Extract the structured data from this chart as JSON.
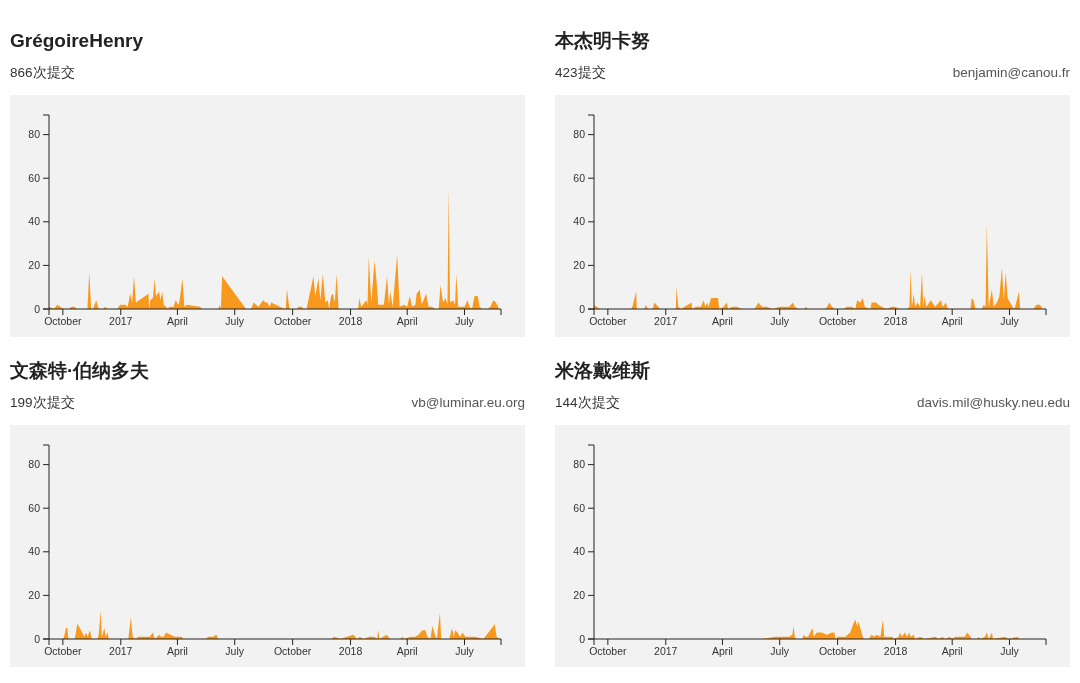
{
  "chart_data": [
    {
      "type": "area",
      "title": "GrégoireHenry",
      "subtitle": "866次提交",
      "color": "#f8991d",
      "xlim": [
        "2016-09-09",
        "2018-08-28"
      ],
      "ylim": [
        0,
        89
      ],
      "yticks": [
        0,
        20,
        40,
        60,
        80
      ],
      "xticks": [
        {
          "value": "2016-10-01",
          "label": "October"
        },
        {
          "value": "2017-01-01",
          "label": "2017"
        },
        {
          "value": "2017-04-01",
          "label": "April"
        },
        {
          "value": "2017-07-01",
          "label": "July"
        },
        {
          "value": "2017-10-01",
          "label": "October"
        },
        {
          "value": "2018-01-01",
          "label": "2018"
        },
        {
          "value": "2018-04-01",
          "label": "April"
        },
        {
          "value": "2018-07-01",
          "label": "July"
        }
      ],
      "x": [
        "2016-09-09",
        "2016-09-17",
        "2016-09-22",
        "2016-09-27",
        "2016-10-02",
        "2016-10-10",
        "2016-10-15",
        "2016-10-20",
        "2016-10-23",
        "2016-11-09",
        "2016-11-12",
        "2016-11-15",
        "2016-11-18",
        "2016-11-23",
        "2016-11-27",
        "2016-12-04",
        "2016-12-07",
        "2016-12-11",
        "2016-12-26",
        "2016-12-31",
        "2017-01-08",
        "2017-01-12",
        "2017-01-16",
        "2017-01-19",
        "2017-01-22",
        "2017-01-25",
        "2017-02-14",
        "2017-02-15",
        "2017-02-17",
        "2017-02-21",
        "2017-02-24",
        "2017-02-26",
        "2017-03-03",
        "2017-03-05",
        "2017-03-08",
        "2017-03-10",
        "2017-03-14",
        "2017-03-17",
        "2017-03-19",
        "2017-03-26",
        "2017-03-29",
        "2017-04-02",
        "2017-04-04",
        "2017-04-09",
        "2017-04-12",
        "2017-04-16",
        "2017-05-07",
        "2017-05-10",
        "2017-06-05",
        "2017-06-07",
        "2017-06-09",
        "2017-06-11",
        "2017-07-19",
        "2017-07-27",
        "2017-07-31",
        "2017-08-04",
        "2017-08-08",
        "2017-08-15",
        "2017-08-19",
        "2017-08-22",
        "2017-08-25",
        "2017-08-28",
        "2017-09-11",
        "2017-09-18",
        "2017-09-20",
        "2017-09-22",
        "2017-09-26",
        "2017-10-08",
        "2017-10-10",
        "2017-10-16",
        "2017-10-18",
        "2017-10-23",
        "2017-10-29",
        "2017-11-03",
        "2017-11-06",
        "2017-11-11",
        "2017-11-14",
        "2017-11-18",
        "2017-11-22",
        "2017-11-26",
        "2017-11-28",
        "2017-12-01",
        "2017-12-04",
        "2017-12-07",
        "2017-12-10",
        "2017-12-13",
        "2018-01-13",
        "2018-01-15",
        "2018-01-18",
        "2018-01-26",
        "2018-01-28",
        "2018-01-30",
        "2018-02-03",
        "2018-02-08",
        "2018-02-11",
        "2018-02-14",
        "2018-02-23",
        "2018-02-28",
        "2018-03-03",
        "2018-03-05",
        "2018-03-09",
        "2018-03-16",
        "2018-03-20",
        "2018-03-27",
        "2018-04-01",
        "2018-04-05",
        "2018-04-09",
        "2018-04-14",
        "2018-04-16",
        "2018-04-21",
        "2018-04-24",
        "2018-05-01",
        "2018-05-05",
        "2018-05-10",
        "2018-05-16",
        "2018-05-21",
        "2018-05-24",
        "2018-05-28",
        "2018-06-01",
        "2018-06-04",
        "2018-06-06",
        "2018-06-08",
        "2018-06-13",
        "2018-06-16",
        "2018-06-18",
        "2018-06-21",
        "2018-07-01",
        "2018-07-06",
        "2018-07-09",
        "2018-07-13",
        "2018-07-17",
        "2018-07-22",
        "2018-07-25",
        "2018-07-29",
        "2018-08-06",
        "2018-08-11",
        "2018-08-16",
        "2018-08-20",
        "2018-08-25"
      ],
      "values": [
        1,
        0,
        2,
        1,
        0,
        0,
        1,
        1,
        0,
        0,
        17,
        0,
        0,
        4,
        0,
        0,
        1,
        0,
        0,
        2,
        2,
        1,
        7,
        3,
        15,
        3,
        7,
        0,
        4,
        5,
        14,
        6,
        8,
        4,
        8,
        2,
        1,
        0,
        1,
        1,
        4,
        2,
        3,
        14,
        1,
        2,
        1,
        0,
        0,
        2,
        0,
        15,
        0,
        0,
        3,
        2,
        1,
        4,
        3,
        3,
        1,
        3,
        1,
        0,
        0,
        9,
        0,
        0,
        1,
        1,
        0,
        0,
        8,
        15,
        6,
        14,
        4,
        16,
        3,
        4,
        0,
        6,
        7,
        3,
        16,
        0,
        0,
        5,
        1,
        4,
        2,
        24,
        3,
        22,
        14,
        2,
        2,
        15,
        2,
        8,
        1,
        25,
        1,
        2,
        1,
        6,
        1,
        2,
        7,
        9,
        2,
        7,
        1,
        1,
        0,
        0,
        11,
        3,
        5,
        2,
        55,
        3,
        4,
        2,
        16,
        1,
        1,
        4,
        1,
        0,
        6,
        6,
        1,
        0,
        0,
        1,
        4,
        3,
        0
      ]
    },
    {
      "type": "area",
      "title": "本杰明卡努",
      "subtitle": "423提交",
      "annotations": [
        "benjamin@canou.fr"
      ],
      "color": "#f8991d",
      "xlim": [
        "2016-09-09",
        "2018-08-28"
      ],
      "ylim": [
        0,
        89
      ],
      "yticks": [
        0,
        20,
        40,
        60,
        80
      ],
      "xticks": [
        {
          "value": "2016-10-01",
          "label": "October"
        },
        {
          "value": "2017-01-01",
          "label": "2017"
        },
        {
          "value": "2017-04-01",
          "label": "April"
        },
        {
          "value": "2017-07-01",
          "label": "July"
        },
        {
          "value": "2017-10-01",
          "label": "October"
        },
        {
          "value": "2018-01-01",
          "label": "2018"
        },
        {
          "value": "2018-04-01",
          "label": "April"
        },
        {
          "value": "2018-07-01",
          "label": "July"
        }
      ],
      "x": [
        "2016-09-09",
        "2016-09-13",
        "2016-09-19",
        "2016-11-07",
        "2016-11-09",
        "2016-11-15",
        "2016-11-16",
        "2016-11-28",
        "2016-11-30",
        "2016-12-04",
        "2016-12-11",
        "2016-12-14",
        "2016-12-20",
        "2016-12-23",
        "2017-01-17",
        "2017-01-18",
        "2017-01-21",
        "2017-01-25",
        "2017-02-11",
        "2017-02-12",
        "2017-02-18",
        "2017-02-26",
        "2017-03-02",
        "2017-03-05",
        "2017-03-08",
        "2017-03-10",
        "2017-03-14",
        "2017-03-25",
        "2017-03-27",
        "2017-04-03",
        "2017-04-08",
        "2017-04-10",
        "2017-04-16",
        "2017-04-24",
        "2017-05-02",
        "2017-05-22",
        "2017-05-28",
        "2017-06-03",
        "2017-06-11",
        "2017-06-19",
        "2017-07-01",
        "2017-07-16",
        "2017-07-22",
        "2017-07-25",
        "2017-07-31",
        "2017-08-09",
        "2017-08-11",
        "2017-08-15",
        "2017-09-12",
        "2017-09-18",
        "2017-09-22",
        "2017-09-27",
        "2017-10-10",
        "2017-10-16",
        "2017-10-24",
        "2017-10-29",
        "2017-11-01",
        "2017-11-06",
        "2017-11-10",
        "2017-11-13",
        "2017-11-22",
        "2017-11-24",
        "2017-12-01",
        "2017-12-05",
        "2017-12-10",
        "2017-12-18",
        "2017-12-26",
        "2017-12-31",
        "2018-01-08",
        "2018-01-19",
        "2018-01-23",
        "2018-01-25",
        "2018-01-27",
        "2018-01-30",
        "2018-02-01",
        "2018-02-05",
        "2018-02-09",
        "2018-02-12",
        "2018-02-14",
        "2018-02-16",
        "2018-02-19",
        "2018-02-26",
        "2018-03-05",
        "2018-03-14",
        "2018-03-17",
        "2018-03-22",
        "2018-03-25",
        "2018-04-30",
        "2018-05-02",
        "2018-05-05",
        "2018-05-08",
        "2018-05-18",
        "2018-05-21",
        "2018-05-24",
        "2018-05-26",
        "2018-05-29",
        "2018-06-03",
        "2018-06-06",
        "2018-06-11",
        "2018-06-15",
        "2018-06-19",
        "2018-06-22",
        "2018-06-25",
        "2018-06-28",
        "2018-07-02",
        "2018-07-06",
        "2018-07-09",
        "2018-07-16",
        "2018-07-18",
        "2018-08-08",
        "2018-08-13",
        "2018-08-18",
        "2018-08-21"
      ],
      "values": [
        2,
        1,
        0,
        0,
        1,
        8,
        0,
        0,
        2,
        0,
        0,
        3,
        1,
        0,
        0,
        10,
        1,
        0,
        3,
        0,
        1,
        1,
        4,
        1,
        3,
        1,
        5,
        5,
        0,
        1,
        3,
        0,
        1,
        1,
        0,
        0,
        3,
        1,
        1,
        0,
        1,
        1,
        3,
        1,
        0,
        0,
        1,
        0,
        0,
        3,
        1,
        0,
        0,
        1,
        1,
        0,
        4,
        3,
        5,
        1,
        0,
        3,
        3,
        2,
        1,
        0,
        1,
        1,
        0,
        0,
        1,
        18,
        1,
        7,
        1,
        3,
        1,
        17,
        1,
        6,
        1,
        4,
        1,
        4,
        1,
        3,
        0,
        0,
        5,
        4,
        0,
        0,
        2,
        1,
        39,
        1,
        9,
        1,
        3,
        6,
        19,
        4,
        17,
        5,
        3,
        1,
        0,
        8,
        0,
        0,
        2,
        2,
        1
      ]
    },
    {
      "type": "area",
      "title": "文森特·伯纳多夫",
      "subtitle": "199次提交",
      "annotations": [
        "vb@luminar.eu.org"
      ],
      "color": "#f8991d",
      "xlim": [
        "2016-09-09",
        "2018-08-28"
      ],
      "ylim": [
        0,
        89
      ],
      "yticks": [
        0,
        20,
        40,
        60,
        80
      ],
      "xticks": [
        {
          "value": "2016-10-01",
          "label": "October"
        },
        {
          "value": "2017-01-01",
          "label": "2017"
        },
        {
          "value": "2017-04-01",
          "label": "April"
        },
        {
          "value": "2017-07-01",
          "label": "July"
        },
        {
          "value": "2017-10-01",
          "label": "October"
        },
        {
          "value": "2018-01-01",
          "label": "2018"
        },
        {
          "value": "2018-04-01",
          "label": "April"
        },
        {
          "value": "2018-07-01",
          "label": "July"
        }
      ],
      "x": [
        "2016-10-02",
        "2016-10-06",
        "2016-10-08",
        "2016-10-10",
        "2016-10-20",
        "2016-10-24",
        "2016-10-30",
        "2016-11-04",
        "2016-11-07",
        "2016-11-09",
        "2016-11-13",
        "2016-11-16",
        "2016-11-25",
        "2016-11-27",
        "2016-11-30",
        "2016-12-02",
        "2016-12-06",
        "2016-12-08",
        "2016-12-11",
        "2016-12-13",
        "2017-01-13",
        "2017-01-17",
        "2017-01-20",
        "2017-01-24",
        "2017-01-29",
        "2017-02-16",
        "2017-02-21",
        "2017-02-24",
        "2017-03-03",
        "2017-03-06",
        "2017-03-10",
        "2017-03-14",
        "2017-03-21",
        "2017-03-28",
        "2017-04-03",
        "2017-04-08",
        "2017-04-10",
        "2017-05-15",
        "2017-05-20",
        "2017-05-27",
        "2017-06-02",
        "2017-06-05",
        "2017-12-02",
        "2017-12-06",
        "2017-12-16",
        "2017-12-26",
        "2018-01-06",
        "2018-01-11",
        "2018-01-16",
        "2018-01-21",
        "2018-01-31",
        "2018-02-08",
        "2018-02-12",
        "2018-02-14",
        "2018-02-16",
        "2018-02-27",
        "2018-03-05",
        "2018-03-21",
        "2018-03-24",
        "2018-03-27",
        "2018-04-06",
        "2018-04-14",
        "2018-04-19",
        "2018-04-25",
        "2018-04-30",
        "2018-05-03",
        "2018-05-08",
        "2018-05-11",
        "2018-05-15",
        "2018-05-18",
        "2018-05-23",
        "2018-05-25",
        "2018-06-07",
        "2018-06-11",
        "2018-06-14",
        "2018-06-16",
        "2018-06-20",
        "2018-06-24",
        "2018-06-28",
        "2018-07-02",
        "2018-07-08",
        "2018-07-13",
        "2018-07-18",
        "2018-07-31",
        "2018-08-16",
        "2018-08-18",
        "2018-08-21",
        "2018-08-26"
      ],
      "values": [
        0,
        5,
        5,
        0,
        0,
        7,
        4,
        1,
        3,
        1,
        4,
        0,
        0,
        2,
        13,
        1,
        5,
        1,
        3,
        0,
        0,
        10,
        1,
        0,
        1,
        1,
        3,
        0,
        2,
        1,
        1,
        3,
        2,
        1,
        1,
        1,
        0,
        0,
        1,
        1,
        2,
        0,
        0,
        1,
        0,
        1,
        2,
        0,
        1,
        0,
        1,
        1,
        0,
        4,
        0,
        2,
        0,
        0,
        1,
        0,
        1,
        1,
        2,
        4,
        4,
        1,
        0,
        6,
        2,
        0,
        12,
        0,
        0,
        5,
        1,
        4,
        3,
        1,
        3,
        1,
        1,
        1,
        1,
        0,
        6,
        7,
        1,
        0
      ]
    },
    {
      "type": "area",
      "title": "米洛戴维斯",
      "subtitle": "144次提交",
      "annotations": [
        "davis.mil@husky.neu.edu"
      ],
      "color": "#f8991d",
      "xlim": [
        "2016-09-09",
        "2018-08-28"
      ],
      "ylim": [
        0,
        89
      ],
      "yticks": [
        0,
        20,
        40,
        60,
        80
      ],
      "xticks": [
        {
          "value": "2016-10-01",
          "label": "October"
        },
        {
          "value": "2017-01-01",
          "label": "2017"
        },
        {
          "value": "2017-04-01",
          "label": "April"
        },
        {
          "value": "2017-07-01",
          "label": "July"
        },
        {
          "value": "2017-10-01",
          "label": "October"
        },
        {
          "value": "2018-01-01",
          "label": "2018"
        },
        {
          "value": "2018-04-01",
          "label": "April"
        },
        {
          "value": "2018-07-01",
          "label": "July"
        }
      ],
      "x": [
        "2017-06-02",
        "2017-06-24",
        "2017-07-16",
        "2017-07-21",
        "2017-07-23",
        "2017-07-25",
        "2017-07-27",
        "2017-08-06",
        "2017-08-08",
        "2017-08-11",
        "2017-08-15",
        "2017-08-22",
        "2017-08-24",
        "2017-08-29",
        "2017-09-06",
        "2017-09-14",
        "2017-09-22",
        "2017-09-26",
        "2017-09-28",
        "2017-10-01",
        "2017-10-13",
        "2017-10-21",
        "2017-10-26",
        "2017-10-29",
        "2017-11-01",
        "2017-11-03",
        "2017-11-08",
        "2017-11-10",
        "2017-11-12",
        "2017-11-19",
        "2017-11-24",
        "2017-11-28",
        "2017-12-02",
        "2017-12-08",
        "2017-12-12",
        "2017-12-14",
        "2017-12-18",
        "2017-12-26",
        "2017-12-31",
        "2018-01-06",
        "2018-01-08",
        "2018-01-11",
        "2018-01-16",
        "2018-01-19",
        "2018-01-23",
        "2018-01-25",
        "2018-01-30",
        "2018-02-01",
        "2018-02-09",
        "2018-02-16",
        "2018-03-05",
        "2018-03-11",
        "2018-03-16",
        "2018-03-21",
        "2018-03-28",
        "2018-04-01",
        "2018-04-06",
        "2018-04-14",
        "2018-04-21",
        "2018-04-25",
        "2018-04-30",
        "2018-05-02",
        "2018-05-10",
        "2018-05-13",
        "2018-05-15",
        "2018-05-23",
        "2018-05-26",
        "2018-05-29",
        "2018-06-03",
        "2018-06-05",
        "2018-06-24",
        "2018-06-30",
        "2018-07-13",
        "2018-07-17"
      ],
      "values": [
        0,
        1,
        1,
        2,
        6,
        1,
        0,
        0,
        2,
        1,
        1,
        5,
        1,
        3,
        3,
        2,
        3,
        3,
        0,
        1,
        1,
        3,
        7,
        9,
        6,
        8,
        3,
        1,
        0,
        0,
        2,
        1,
        2,
        1,
        9,
        1,
        1,
        1,
        0,
        1,
        3,
        1,
        3,
        1,
        3,
        1,
        2,
        0,
        1,
        0,
        1,
        0,
        1,
        0,
        1,
        0,
        1,
        1,
        1,
        3,
        1,
        0,
        0,
        1,
        0,
        1,
        3,
        0,
        3,
        0,
        1,
        0,
        1,
        0
      ]
    }
  ]
}
